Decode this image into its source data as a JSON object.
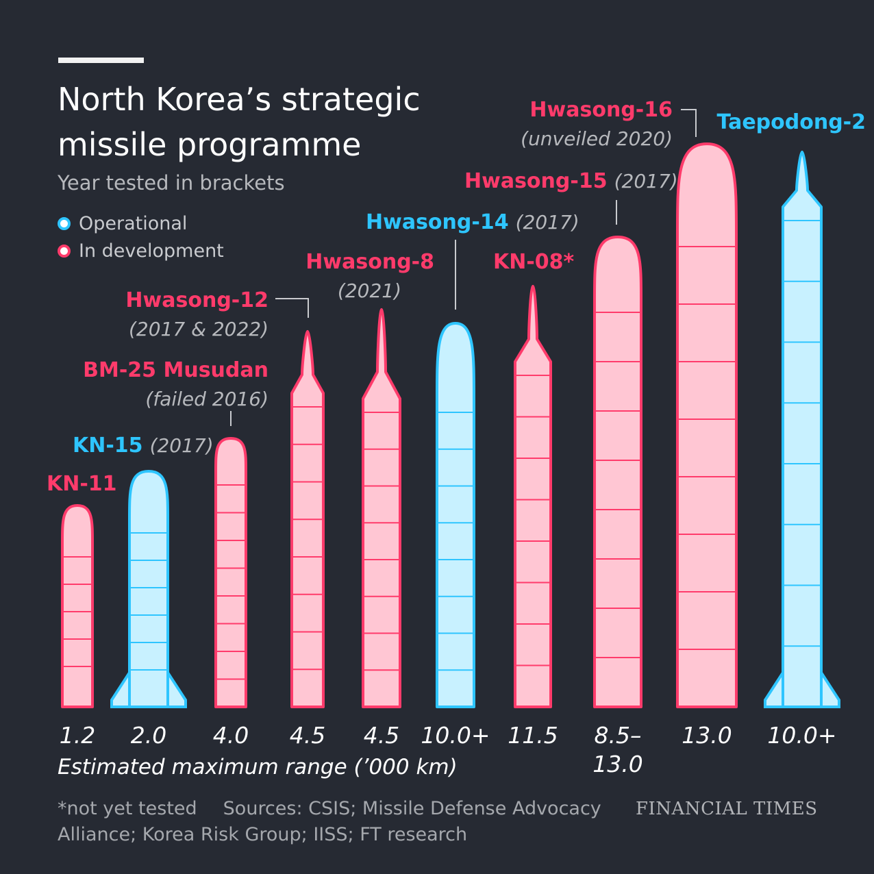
{
  "header": {
    "title": "North Korea’s strategic missile programme",
    "subtitle": "Year tested in brackets"
  },
  "legend": {
    "operational": "Operational",
    "in_development": "In development"
  },
  "colors": {
    "background": "#262a33",
    "operational": "#2ec5ff",
    "operational_fill": "#c8f1ff",
    "in_development": "#ff3b6b",
    "in_development_fill": "#ffc6d3"
  },
  "footer": {
    "note": "*not yet tested",
    "sources": "Sources: CSIS; Missile Defense Advocacy Alliance; Korea Risk Group; IISS; FT research",
    "brand": "FINANCIAL TIMES"
  },
  "chart_data": {
    "type": "bar",
    "title": "North Korea’s strategic missile programme",
    "subtitle": "Year tested in brackets",
    "xlabel": "Estimated maximum range (’000 km)",
    "legend": [
      "Operational",
      "In development"
    ],
    "categories": [
      "KN-11",
      "KN-15",
      "BM-25 Musudan",
      "Hwasong-12",
      "Hwasong-8",
      "Hwasong-14",
      "KN-08*",
      "Hwasong-15",
      "Hwasong-16",
      "Taepodong-2"
    ],
    "years": [
      "",
      "(2017)",
      "(failed 2016)",
      "(2017 & 2022)",
      "(2021)",
      "(2017)",
      "",
      "(2017)",
      "(unveiled 2020)",
      ""
    ],
    "status": [
      "In development",
      "Operational",
      "In development",
      "In development",
      "In development",
      "Operational",
      "In development",
      "In development",
      "In development",
      "Operational"
    ],
    "range_labels": [
      "1.2",
      "2.0",
      "4.0",
      "4.5",
      "4.5",
      "10.0+",
      "11.5",
      "8.5–\n13.0",
      "13.0",
      "10.0+"
    ]
  }
}
